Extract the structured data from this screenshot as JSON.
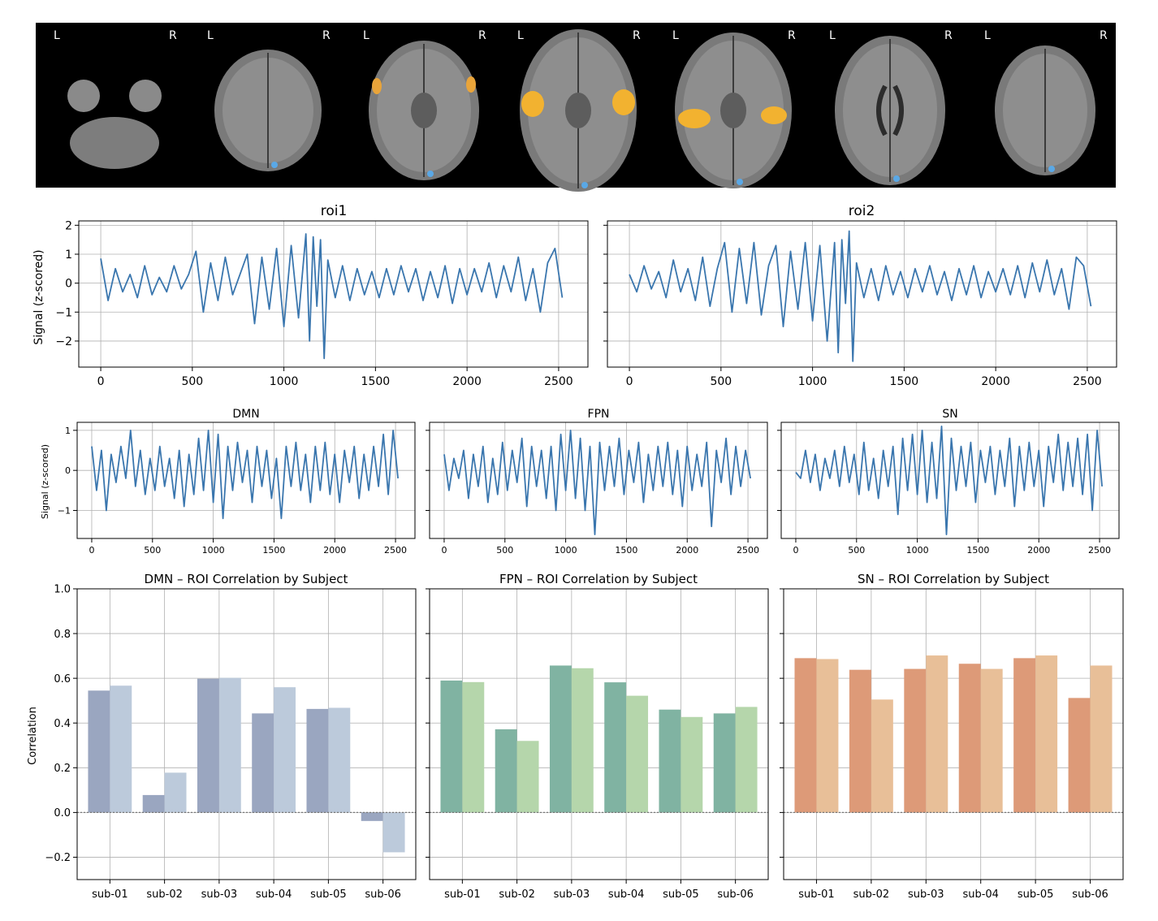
{
  "brain_strip": {
    "slices": [
      {
        "left_label": "L",
        "right_label": "R",
        "level": "cerebellum"
      },
      {
        "left_label": "L",
        "right_label": "R",
        "level": "brainstem"
      },
      {
        "left_label": "L",
        "right_label": "R",
        "level": "temporal-low"
      },
      {
        "left_label": "L",
        "right_label": "R",
        "level": "insula"
      },
      {
        "left_label": "L",
        "right_label": "R",
        "level": "basal-ganglia"
      },
      {
        "left_label": "L",
        "right_label": "R",
        "level": "ventricles"
      },
      {
        "left_label": "L",
        "right_label": "R",
        "level": "vertex"
      }
    ]
  },
  "line_color": "#3a76ae",
  "chart_data": [
    {
      "id": "roi1",
      "type": "line",
      "title": "roi1",
      "ylabel": "Signal (z-scored)",
      "xlim": [
        -120,
        2660
      ],
      "ylim": [
        -2.9,
        2.15
      ],
      "xticks": [
        0,
        500,
        1000,
        1500,
        2000,
        2500
      ],
      "yticks": [
        -2,
        -1,
        0,
        1,
        2
      ],
      "grid": true,
      "x": [
        0,
        40,
        80,
        120,
        160,
        200,
        240,
        280,
        320,
        360,
        400,
        440,
        480,
        520,
        560,
        600,
        640,
        680,
        720,
        760,
        800,
        840,
        880,
        920,
        960,
        1000,
        1040,
        1080,
        1120,
        1140,
        1160,
        1180,
        1200,
        1220,
        1240,
        1280,
        1320,
        1360,
        1400,
        1440,
        1480,
        1520,
        1560,
        1600,
        1640,
        1680,
        1720,
        1760,
        1800,
        1840,
        1880,
        1920,
        1960,
        2000,
        2040,
        2080,
        2120,
        2160,
        2200,
        2240,
        2280,
        2320,
        2360,
        2400,
        2440,
        2480,
        2520
      ],
      "values": [
        0.85,
        -0.6,
        0.5,
        -0.3,
        0.3,
        -0.5,
        0.6,
        -0.4,
        0.2,
        -0.3,
        0.6,
        -0.2,
        0.3,
        1.1,
        -1.0,
        0.7,
        -0.6,
        0.9,
        -0.4,
        0.3,
        1.0,
        -1.4,
        0.9,
        -0.9,
        1.2,
        -1.5,
        1.3,
        -1.2,
        1.7,
        -2.0,
        1.6,
        -0.8,
        1.5,
        -2.6,
        0.8,
        -0.5,
        0.6,
        -0.6,
        0.5,
        -0.4,
        0.4,
        -0.5,
        0.5,
        -0.4,
        0.6,
        -0.3,
        0.5,
        -0.6,
        0.4,
        -0.5,
        0.6,
        -0.7,
        0.5,
        -0.4,
        0.5,
        -0.3,
        0.7,
        -0.5,
        0.6,
        -0.3,
        0.9,
        -0.6,
        0.5,
        -1.0,
        0.7,
        1.2,
        -0.5
      ]
    },
    {
      "id": "roi2",
      "type": "line",
      "title": "roi2",
      "xlim": [
        -120,
        2660
      ],
      "ylim": [
        -2.9,
        2.15
      ],
      "xticks": [
        0,
        500,
        1000,
        1500,
        2000,
        2500
      ],
      "yticks": [
        -2,
        -1,
        0,
        1,
        2
      ],
      "grid": true,
      "x": [
        0,
        40,
        80,
        120,
        160,
        200,
        240,
        280,
        320,
        360,
        400,
        440,
        480,
        520,
        560,
        600,
        640,
        680,
        720,
        760,
        800,
        840,
        880,
        920,
        960,
        1000,
        1040,
        1080,
        1120,
        1140,
        1160,
        1180,
        1200,
        1220,
        1240,
        1280,
        1320,
        1360,
        1400,
        1440,
        1480,
        1520,
        1560,
        1600,
        1640,
        1680,
        1720,
        1760,
        1800,
        1840,
        1880,
        1920,
        1960,
        2000,
        2040,
        2080,
        2120,
        2160,
        2200,
        2240,
        2280,
        2320,
        2360,
        2400,
        2440,
        2480,
        2520
      ],
      "values": [
        0.3,
        -0.3,
        0.6,
        -0.2,
        0.4,
        -0.5,
        0.8,
        -0.3,
        0.5,
        -0.6,
        0.9,
        -0.8,
        0.5,
        1.4,
        -1.0,
        1.2,
        -0.7,
        1.4,
        -1.1,
        0.6,
        1.3,
        -1.5,
        1.1,
        -0.9,
        1.4,
        -1.3,
        1.3,
        -2.0,
        1.4,
        -2.4,
        1.5,
        -0.7,
        1.8,
        -2.7,
        0.7,
        -0.5,
        0.5,
        -0.6,
        0.6,
        -0.4,
        0.4,
        -0.5,
        0.5,
        -0.3,
        0.6,
        -0.4,
        0.4,
        -0.6,
        0.5,
        -0.4,
        0.6,
        -0.5,
        0.4,
        -0.3,
        0.5,
        -0.4,
        0.6,
        -0.5,
        0.7,
        -0.3,
        0.8,
        -0.4,
        0.5,
        -0.9,
        0.9,
        0.6,
        -0.8
      ]
    },
    {
      "id": "dmn_ts",
      "type": "line",
      "title": "DMN",
      "ylabel": "Signal (z-scored)",
      "xlim": [
        -120,
        2660
      ],
      "ylim": [
        -1.7,
        1.2
      ],
      "xticks": [
        0,
        500,
        1000,
        1500,
        2000,
        2500
      ],
      "yticks": [
        -1,
        0,
        1
      ],
      "grid": true,
      "x": [
        0,
        40,
        80,
        120,
        160,
        200,
        240,
        280,
        320,
        360,
        400,
        440,
        480,
        520,
        560,
        600,
        640,
        680,
        720,
        760,
        800,
        840,
        880,
        920,
        960,
        1000,
        1040,
        1080,
        1120,
        1160,
        1200,
        1240,
        1280,
        1320,
        1360,
        1400,
        1440,
        1480,
        1520,
        1560,
        1600,
        1640,
        1680,
        1720,
        1760,
        1800,
        1840,
        1880,
        1920,
        1960,
        2000,
        2040,
        2080,
        2120,
        2160,
        2200,
        2240,
        2280,
        2320,
        2360,
        2400,
        2440,
        2480,
        2520
      ],
      "values": [
        0.6,
        -0.5,
        0.5,
        -1.0,
        0.4,
        -0.3,
        0.6,
        -0.2,
        1.0,
        -0.4,
        0.5,
        -0.6,
        0.3,
        -0.5,
        0.6,
        -0.4,
        0.3,
        -0.7,
        0.5,
        -0.9,
        0.4,
        -0.6,
        0.8,
        -0.5,
        1.0,
        -0.8,
        0.9,
        -1.2,
        0.6,
        -0.5,
        0.7,
        -0.3,
        0.5,
        -0.8,
        0.6,
        -0.4,
        0.5,
        -0.7,
        0.3,
        -1.2,
        0.6,
        -0.4,
        0.7,
        -0.5,
        0.4,
        -0.8,
        0.6,
        -0.5,
        0.7,
        -0.6,
        0.4,
        -0.8,
        0.5,
        -0.3,
        0.6,
        -0.7,
        0.4,
        -0.5,
        0.6,
        -0.4,
        0.9,
        -0.6,
        1.0,
        -0.2
      ]
    },
    {
      "id": "fpn_ts",
      "type": "line",
      "title": "FPN",
      "xlim": [
        -120,
        2660
      ],
      "ylim": [
        -1.7,
        1.2
      ],
      "xticks": [
        0,
        500,
        1000,
        1500,
        2000,
        2500
      ],
      "yticks": [
        -1,
        0,
        1
      ],
      "grid": true,
      "x": [
        0,
        40,
        80,
        120,
        160,
        200,
        240,
        280,
        320,
        360,
        400,
        440,
        480,
        520,
        560,
        600,
        640,
        680,
        720,
        760,
        800,
        840,
        880,
        920,
        960,
        1000,
        1040,
        1080,
        1120,
        1160,
        1200,
        1240,
        1280,
        1320,
        1360,
        1400,
        1440,
        1480,
        1520,
        1560,
        1600,
        1640,
        1680,
        1720,
        1760,
        1800,
        1840,
        1880,
        1920,
        1960,
        2000,
        2040,
        2080,
        2120,
        2160,
        2200,
        2240,
        2280,
        2320,
        2360,
        2400,
        2440,
        2480,
        2520
      ],
      "values": [
        0.4,
        -0.5,
        0.3,
        -0.2,
        0.5,
        -0.7,
        0.4,
        -0.4,
        0.6,
        -0.8,
        0.3,
        -0.6,
        0.7,
        -0.5,
        0.5,
        -0.3,
        0.8,
        -0.9,
        0.6,
        -0.4,
        0.5,
        -0.7,
        0.6,
        -1.0,
        0.9,
        -0.5,
        1.0,
        -0.7,
        0.8,
        -1.0,
        0.6,
        -1.6,
        0.7,
        -0.5,
        0.6,
        -0.4,
        0.8,
        -0.6,
        0.5,
        -0.3,
        0.7,
        -0.8,
        0.4,
        -0.5,
        0.6,
        -0.4,
        0.7,
        -0.6,
        0.5,
        -0.9,
        0.6,
        -0.5,
        0.4,
        -0.4,
        0.7,
        -1.4,
        0.5,
        -0.3,
        0.8,
        -0.6,
        0.6,
        -0.4,
        0.5,
        -0.2
      ]
    },
    {
      "id": "sn_ts",
      "type": "line",
      "title": "SN",
      "xlim": [
        -120,
        2660
      ],
      "ylim": [
        -1.7,
        1.2
      ],
      "xticks": [
        0,
        500,
        1000,
        1500,
        2000,
        2500
      ],
      "yticks": [
        -1,
        0,
        1
      ],
      "grid": true,
      "x": [
        0,
        40,
        80,
        120,
        160,
        200,
        240,
        280,
        320,
        360,
        400,
        440,
        480,
        520,
        560,
        600,
        640,
        680,
        720,
        760,
        800,
        840,
        880,
        920,
        960,
        1000,
        1040,
        1080,
        1120,
        1160,
        1200,
        1240,
        1280,
        1320,
        1360,
        1400,
        1440,
        1480,
        1520,
        1560,
        1600,
        1640,
        1680,
        1720,
        1760,
        1800,
        1840,
        1880,
        1920,
        1960,
        2000,
        2040,
        2080,
        2120,
        2160,
        2200,
        2240,
        2280,
        2320,
        2360,
        2400,
        2440,
        2480,
        2520
      ],
      "values": [
        -0.05,
        -0.2,
        0.5,
        -0.3,
        0.4,
        -0.5,
        0.3,
        -0.2,
        0.5,
        -0.4,
        0.6,
        -0.3,
        0.4,
        -0.6,
        0.7,
        -0.5,
        0.3,
        -0.7,
        0.5,
        -0.4,
        0.6,
        -1.1,
        0.8,
        -0.5,
        0.9,
        -0.6,
        1.0,
        -0.8,
        0.7,
        -0.7,
        1.1,
        -1.6,
        0.8,
        -0.5,
        0.6,
        -0.4,
        0.7,
        -0.8,
        0.5,
        -0.3,
        0.6,
        -0.6,
        0.5,
        -0.4,
        0.8,
        -0.9,
        0.6,
        -0.5,
        0.7,
        -0.4,
        0.5,
        -0.9,
        0.6,
        -0.3,
        0.9,
        -0.5,
        0.7,
        -0.4,
        0.8,
        -0.6,
        0.9,
        -1.0,
        1.0,
        -0.4
      ]
    },
    {
      "id": "dmn_bar",
      "type": "bar",
      "title": "DMN – ROI Correlation by Subject",
      "ylabel": "Correlation",
      "ylim": [
        -0.3,
        1.0
      ],
      "yticks": [
        -0.2,
        0.0,
        0.2,
        0.4,
        0.6,
        0.8,
        1.0
      ],
      "grid": true,
      "categories": [
        "sub-01",
        "sub-02",
        "sub-03",
        "sub-04",
        "sub-05",
        "sub-06"
      ],
      "series": [
        {
          "values": [
            0.545,
            0.078,
            0.598,
            0.443,
            0.463,
            -0.038
          ],
          "color": "#9aa6c0"
        },
        {
          "values": [
            0.567,
            0.178,
            0.602,
            0.56,
            0.468,
            -0.178
          ],
          "color": "#bccadb"
        }
      ]
    },
    {
      "id": "fpn_bar",
      "type": "bar",
      "title": "FPN – ROI Correlation by Subject",
      "ylim": [
        -0.3,
        1.0
      ],
      "yticks": [
        -0.2,
        0.0,
        0.2,
        0.4,
        0.6,
        0.8,
        1.0
      ],
      "grid": true,
      "categories": [
        "sub-01",
        "sub-02",
        "sub-03",
        "sub-04",
        "sub-05",
        "sub-06"
      ],
      "series": [
        {
          "values": [
            0.59,
            0.372,
            0.657,
            0.582,
            0.46,
            0.443
          ],
          "color": "#80b3a2"
        },
        {
          "values": [
            0.583,
            0.32,
            0.645,
            0.522,
            0.427,
            0.472
          ],
          "color": "#b5d6ab"
        }
      ]
    },
    {
      "id": "sn_bar",
      "type": "bar",
      "title": "SN – ROI Correlation by Subject",
      "ylim": [
        -0.3,
        1.0
      ],
      "yticks": [
        -0.2,
        0.0,
        0.2,
        0.4,
        0.6,
        0.8,
        1.0
      ],
      "grid": true,
      "categories": [
        "sub-01",
        "sub-02",
        "sub-03",
        "sub-04",
        "sub-05",
        "sub-06"
      ],
      "series": [
        {
          "values": [
            0.69,
            0.638,
            0.642,
            0.665,
            0.69,
            0.512
          ],
          "color": "#dd9a78"
        },
        {
          "values": [
            0.686,
            0.505,
            0.702,
            0.642,
            0.702,
            0.657
          ],
          "color": "#e8bf98"
        }
      ]
    }
  ]
}
